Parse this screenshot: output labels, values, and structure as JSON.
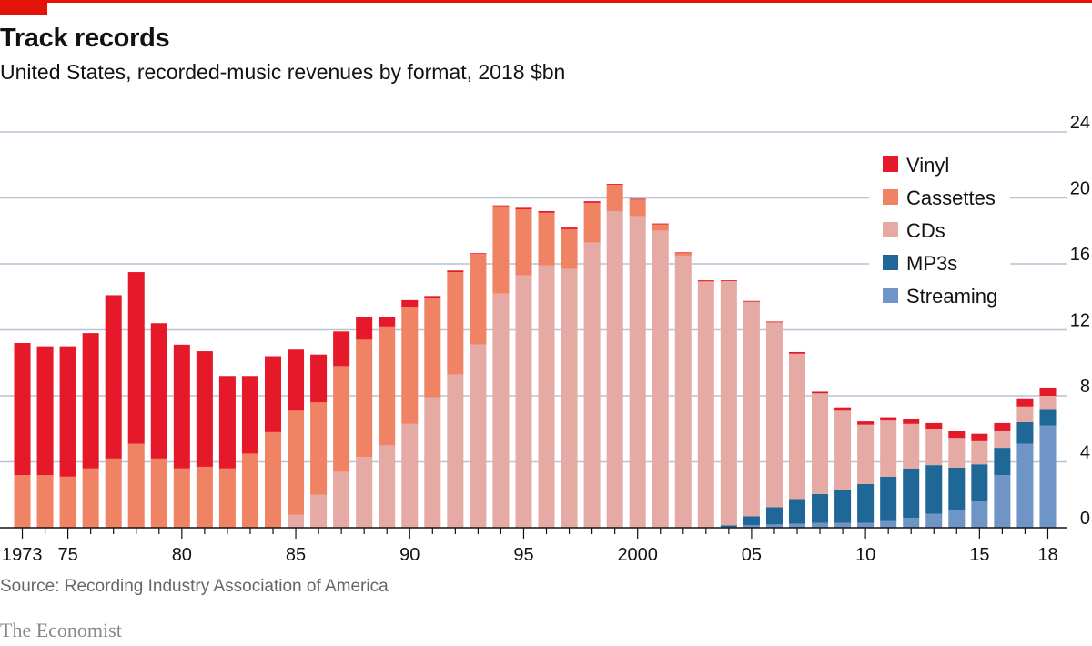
{
  "header": {
    "title": "Track records",
    "subtitle": "United States, recorded-music revenues by format, 2018 $bn"
  },
  "footer": {
    "source": "Source: Recording Industry Association of America",
    "brand": "The Economist"
  },
  "chart_data": {
    "type": "bar",
    "stacked": true,
    "title": "Track records",
    "subtitle": "United States, recorded-music revenues by format, 2018 $bn",
    "xlabel": "",
    "ylabel": "",
    "ylim": [
      0,
      24
    ],
    "yticks": [
      0,
      4,
      8,
      12,
      16,
      20,
      24
    ],
    "y_axis_side": "right",
    "grid": true,
    "legend_position": "top-right",
    "x_tick_labels": [
      {
        "year": 1973,
        "label": "1973"
      },
      {
        "year": 1975,
        "label": "75"
      },
      {
        "year": 1980,
        "label": "80"
      },
      {
        "year": 1985,
        "label": "85"
      },
      {
        "year": 1990,
        "label": "90"
      },
      {
        "year": 1995,
        "label": "95"
      },
      {
        "year": 2000,
        "label": "2000"
      },
      {
        "year": 2005,
        "label": "05"
      },
      {
        "year": 2010,
        "label": "10"
      },
      {
        "year": 2015,
        "label": "15"
      },
      {
        "year": 2018,
        "label": "18"
      }
    ],
    "categories": [
      1973,
      1974,
      1975,
      1976,
      1977,
      1978,
      1979,
      1980,
      1981,
      1982,
      1983,
      1984,
      1985,
      1986,
      1987,
      1988,
      1989,
      1990,
      1991,
      1992,
      1993,
      1994,
      1995,
      1996,
      1997,
      1998,
      1999,
      2000,
      2001,
      2002,
      2003,
      2004,
      2005,
      2006,
      2007,
      2008,
      2009,
      2010,
      2011,
      2012,
      2013,
      2014,
      2015,
      2016,
      2017,
      2018
    ],
    "series": [
      {
        "name": "Streaming",
        "color": "#6f94c6",
        "values": [
          0,
          0,
          0,
          0,
          0,
          0,
          0,
          0,
          0,
          0,
          0,
          0,
          0,
          0,
          0,
          0,
          0,
          0,
          0,
          0,
          0,
          0,
          0,
          0,
          0,
          0,
          0,
          0,
          0,
          0,
          0,
          0.05,
          0.15,
          0.2,
          0.25,
          0.3,
          0.3,
          0.3,
          0.4,
          0.6,
          0.85,
          1.1,
          1.6,
          3.2,
          5.1,
          6.2
        ]
      },
      {
        "name": "MP3s",
        "color": "#1f6796",
        "values": [
          0,
          0,
          0,
          0,
          0,
          0,
          0,
          0,
          0,
          0,
          0,
          0,
          0,
          0,
          0,
          0,
          0,
          0,
          0,
          0,
          0,
          0,
          0,
          0,
          0,
          0,
          0,
          0,
          0,
          0,
          0,
          0.1,
          0.55,
          1.05,
          1.5,
          1.75,
          2.0,
          2.35,
          2.7,
          3.0,
          2.95,
          2.55,
          2.25,
          1.65,
          1.3,
          0.95
        ]
      },
      {
        "name": "CDs",
        "color": "#e6aaa4",
        "values": [
          0,
          0,
          0,
          0,
          0,
          0,
          0,
          0,
          0,
          0,
          0,
          0,
          0.8,
          2.0,
          3.4,
          4.3,
          5.0,
          6.3,
          7.9,
          9.3,
          11.1,
          14.2,
          15.3,
          15.9,
          15.7,
          17.3,
          19.2,
          18.9,
          18.0,
          16.5,
          14.9,
          14.8,
          13.0,
          11.2,
          8.8,
          6.1,
          4.8,
          3.6,
          3.4,
          2.7,
          2.2,
          1.8,
          1.4,
          1.0,
          0.95,
          0.85
        ]
      },
      {
        "name": "Cassettes",
        "color": "#f08364",
        "values": [
          3.2,
          3.2,
          3.1,
          3.6,
          4.2,
          5.1,
          4.2,
          3.6,
          3.7,
          3.6,
          4.5,
          5.8,
          6.3,
          5.6,
          6.4,
          7.1,
          7.2,
          7.1,
          6.0,
          6.2,
          5.5,
          5.3,
          4.0,
          3.2,
          2.4,
          2.4,
          1.6,
          1.0,
          0.4,
          0.15,
          0.05,
          0,
          0,
          0,
          0,
          0,
          0,
          0,
          0,
          0,
          0,
          0,
          0,
          0,
          0,
          0
        ]
      },
      {
        "name": "Vinyl",
        "color": "#e5192a",
        "values": [
          8.0,
          7.8,
          7.9,
          8.2,
          9.9,
          10.4,
          8.2,
          7.5,
          7.0,
          5.6,
          4.7,
          4.6,
          3.7,
          2.9,
          2.1,
          1.4,
          0.6,
          0.4,
          0.15,
          0.1,
          0.05,
          0.05,
          0.1,
          0.1,
          0.1,
          0.1,
          0.05,
          0.05,
          0.05,
          0.05,
          0.05,
          0.05,
          0.05,
          0.05,
          0.1,
          0.1,
          0.2,
          0.2,
          0.2,
          0.3,
          0.35,
          0.4,
          0.45,
          0.5,
          0.5,
          0.5
        ]
      }
    ],
    "legend": [
      {
        "name": "Vinyl",
        "color": "#e5192a"
      },
      {
        "name": "Cassettes",
        "color": "#f08364"
      },
      {
        "name": "CDs",
        "color": "#e6aaa4"
      },
      {
        "name": "MP3s",
        "color": "#1f6796"
      },
      {
        "name": "Streaming",
        "color": "#6f94c6"
      }
    ],
    "colors": {
      "gridline": "#b6c4d4",
      "axis": "#121212",
      "accent": "#e3120b"
    }
  }
}
